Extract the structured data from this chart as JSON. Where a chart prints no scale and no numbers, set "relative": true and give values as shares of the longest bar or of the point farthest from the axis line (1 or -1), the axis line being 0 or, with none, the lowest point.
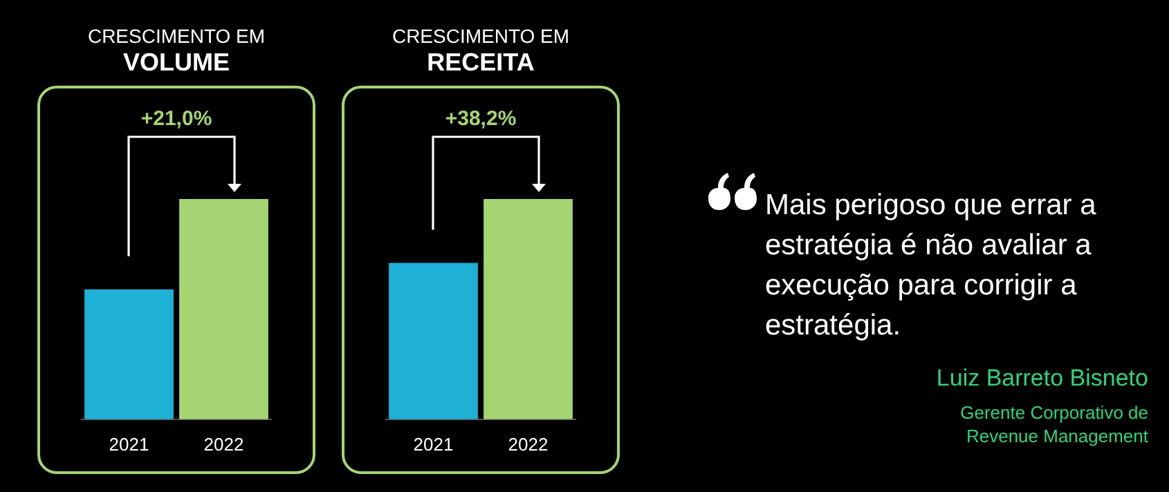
{
  "chart_data": [
    {
      "type": "bar",
      "title": "CRESCIMENTO EM",
      "subtitle": "VOLUME",
      "categories": [
        "2021",
        "2022"
      ],
      "values": [
        0.59,
        1
      ],
      "colors": [
        "#1fb0d6",
        "#a5d573"
      ],
      "relative": true,
      "annotations": [
        "+21,0%"
      ]
    },
    {
      "type": "bar",
      "title": "CRESCIMENTO EM",
      "subtitle": "RECEITA",
      "categories": [
        "2021",
        "2022"
      ],
      "values": [
        0.71,
        1
      ],
      "colors": [
        "#1fb0d6",
        "#a5d573"
      ],
      "relative": true,
      "annotations": [
        "+38,2%"
      ]
    },
    {
      "type": "other",
      "annotations": [
        "Mais perigoso que errar a estratégia é não avaliar a execução para corrigir a estratégia.",
        "Luiz Barreto Bisneto",
        "Gerente Corporativo de Revenue Management"
      ]
    }
  ]
}
